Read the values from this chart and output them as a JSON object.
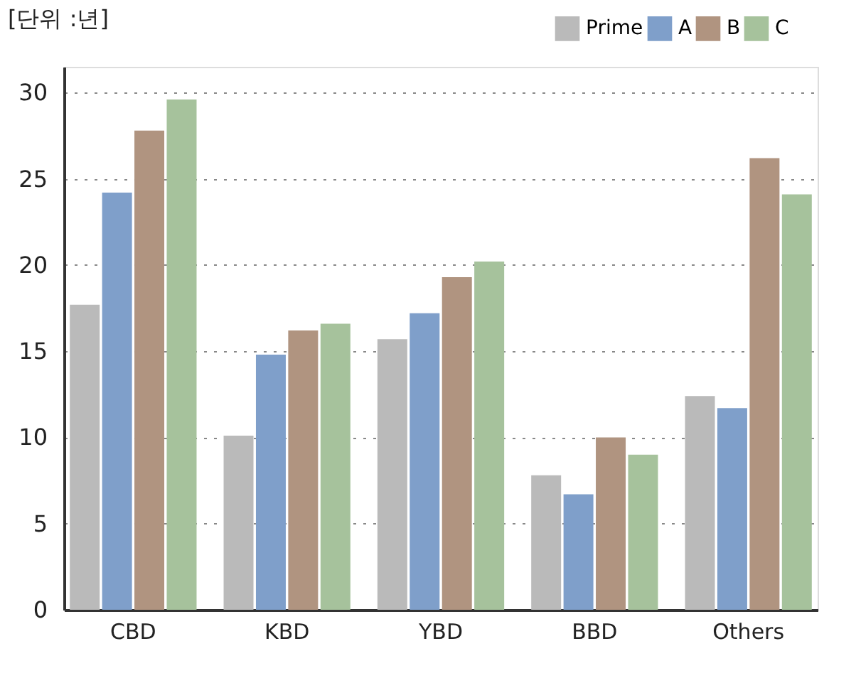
{
  "chart_data": {
    "type": "bar",
    "ylabel": "[단위 :년]",
    "categories": [
      "CBD",
      "KBD",
      "YBD",
      "BBD",
      "Others"
    ],
    "series": [
      {
        "name": "Prime",
        "color": "#bababa",
        "values": [
          17.7,
          10.1,
          15.7,
          7.8,
          12.4
        ]
      },
      {
        "name": "A",
        "color": "#7f9fca",
        "values": [
          24.2,
          14.8,
          17.2,
          6.7,
          11.7
        ]
      },
      {
        "name": "B",
        "color": "#b09480",
        "values": [
          27.8,
          16.2,
          19.3,
          10.0,
          26.2
        ]
      },
      {
        "name": "C",
        "color": "#a6c29c",
        "values": [
          29.6,
          16.6,
          20.2,
          9.0,
          24.1
        ]
      }
    ],
    "ylim": [
      0,
      31.5
    ],
    "yticks": [
      0,
      5,
      10,
      15,
      20,
      25,
      30
    ],
    "grid": "y",
    "legend": "top right"
  }
}
